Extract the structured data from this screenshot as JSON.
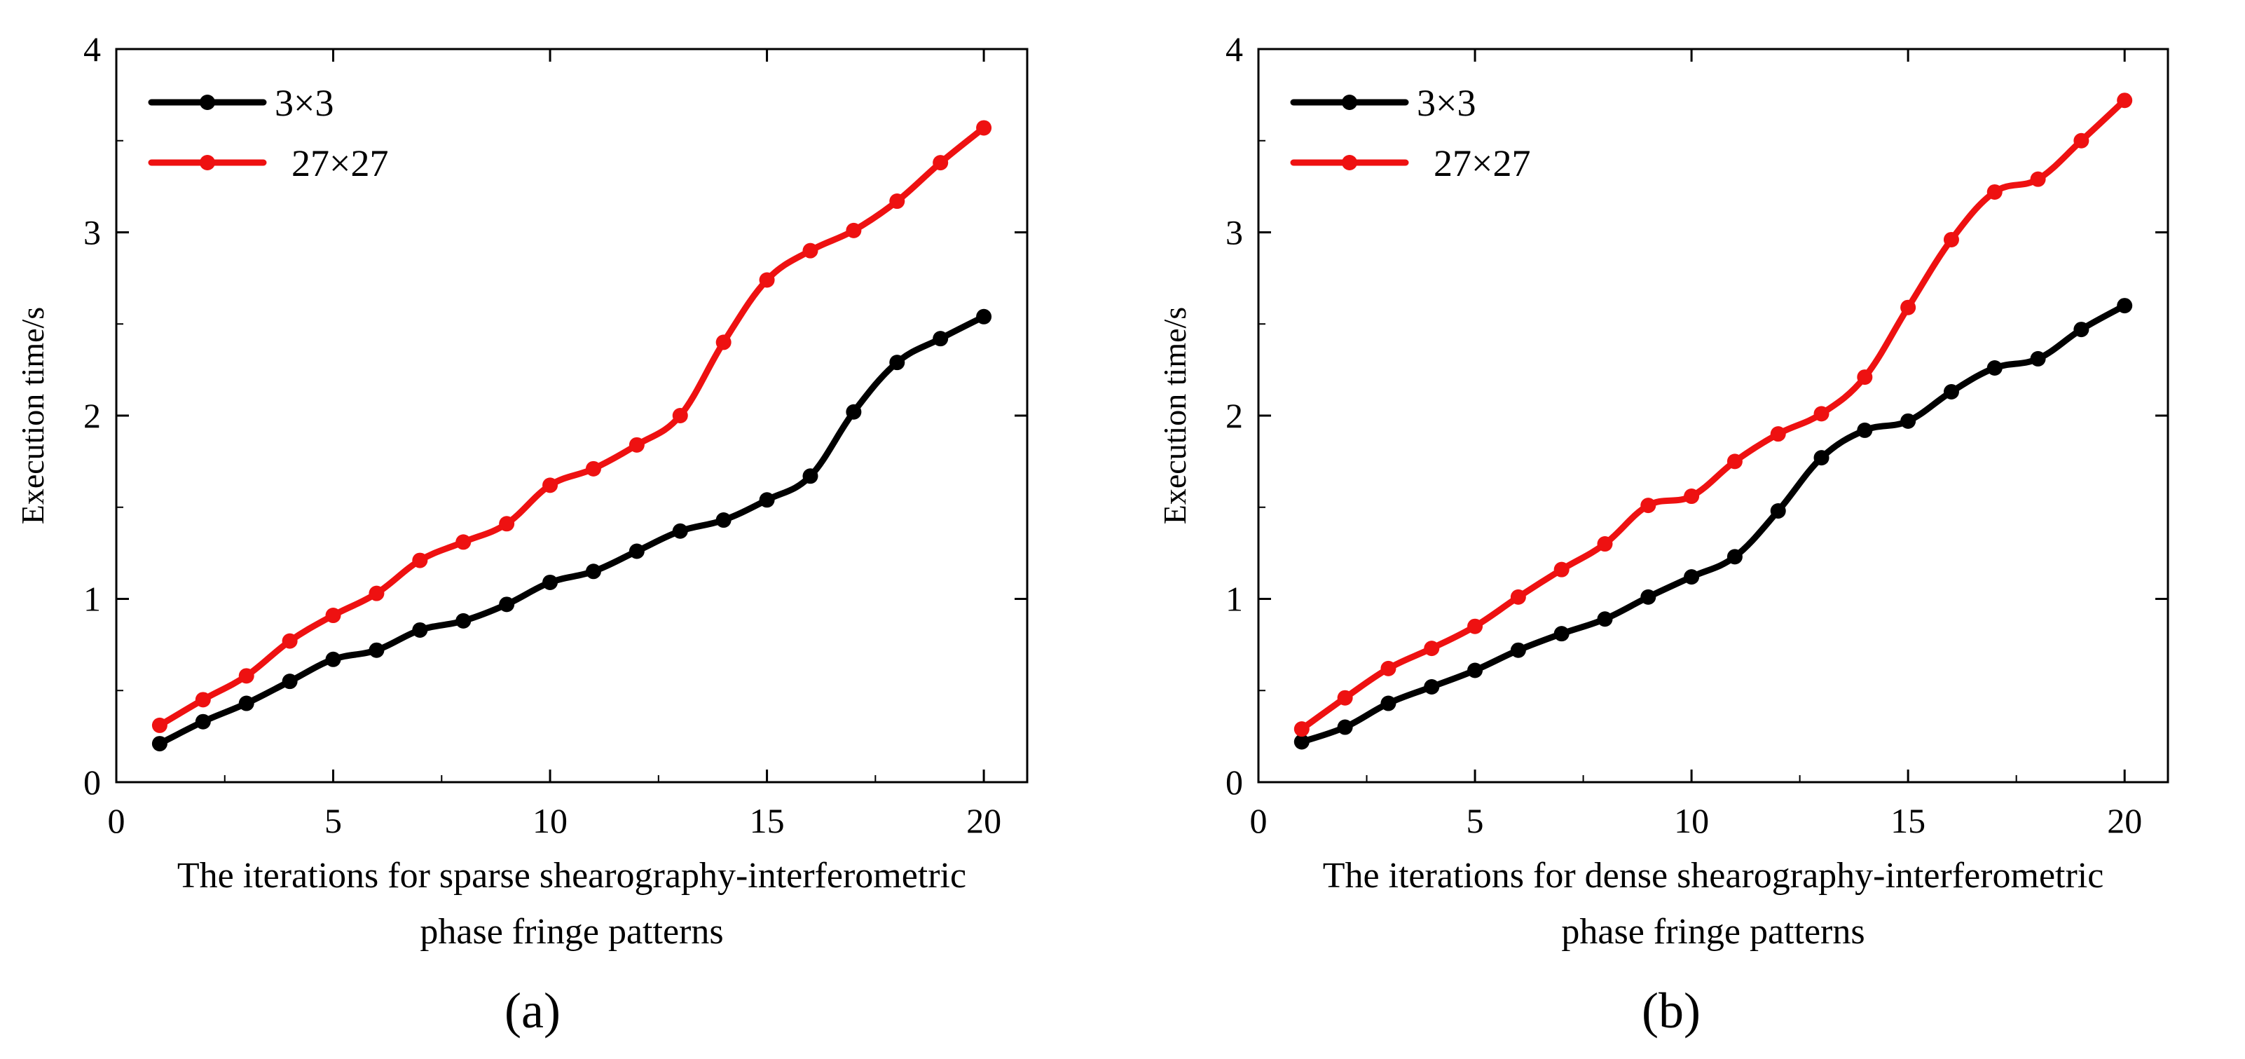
{
  "chart_data": [
    {
      "type": "line",
      "panel_label": "(a)",
      "xlabel_lines": [
        "The iterations for sparse shearography-interferometric",
        "phase fringe patterns"
      ],
      "ylabel": "Execution time/s",
      "xlim": [
        0,
        21
      ],
      "ylim": [
        0,
        4
      ],
      "xticks": [
        0,
        5,
        10,
        15,
        20
      ],
      "yticks": [
        0,
        1,
        2,
        3,
        4
      ],
      "legend_position": "top-left",
      "grid": false,
      "x": [
        1,
        2,
        3,
        4,
        5,
        6,
        7,
        8,
        9,
        10,
        11,
        12,
        13,
        14,
        15,
        16,
        17,
        18,
        19,
        20
      ],
      "series": [
        {
          "name": "3×3",
          "color": "#000000",
          "values": [
            0.21,
            0.33,
            0.43,
            0.55,
            0.67,
            0.72,
            0.83,
            0.88,
            0.97,
            1.09,
            1.15,
            1.26,
            1.37,
            1.43,
            1.54,
            1.67,
            2.02,
            2.29,
            2.42,
            2.54
          ]
        },
        {
          "name": "27×27",
          "color": "#ee1111",
          "values": [
            0.31,
            0.45,
            0.58,
            0.77,
            0.91,
            1.03,
            1.21,
            1.31,
            1.41,
            1.62,
            1.71,
            1.84,
            2.0,
            2.4,
            2.74,
            2.9,
            3.01,
            3.17,
            3.38,
            3.57
          ]
        }
      ]
    },
    {
      "type": "line",
      "panel_label": "(b)",
      "xlabel_lines": [
        "The iterations for dense shearography-interferometric",
        "phase fringe patterns"
      ],
      "ylabel": "Execution time/s",
      "xlim": [
        0,
        21
      ],
      "ylim": [
        0,
        4
      ],
      "xticks": [
        0,
        5,
        10,
        15,
        20
      ],
      "yticks": [
        0,
        1,
        2,
        3,
        4
      ],
      "legend_position": "top-left",
      "grid": false,
      "x": [
        1,
        2,
        3,
        4,
        5,
        6,
        7,
        8,
        9,
        10,
        11,
        12,
        13,
        14,
        15,
        16,
        17,
        18,
        19,
        20
      ],
      "series": [
        {
          "name": "3×3",
          "color": "#000000",
          "values": [
            0.22,
            0.3,
            0.43,
            0.52,
            0.61,
            0.72,
            0.81,
            0.89,
            1.01,
            1.12,
            1.23,
            1.48,
            1.77,
            1.92,
            1.97,
            2.13,
            2.26,
            2.31,
            2.47,
            2.6
          ]
        },
        {
          "name": "27×27",
          "color": "#ee1111",
          "values": [
            0.29,
            0.46,
            0.62,
            0.73,
            0.85,
            1.01,
            1.16,
            1.3,
            1.51,
            1.56,
            1.75,
            1.9,
            2.01,
            2.21,
            2.59,
            2.96,
            3.22,
            3.29,
            3.5,
            3.72
          ]
        }
      ]
    }
  ]
}
